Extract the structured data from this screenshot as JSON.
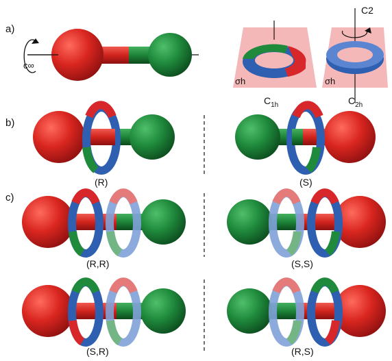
{
  "panels": {
    "a": "a)",
    "b": "b)",
    "c": "c)"
  },
  "axis_label_cinf": "c∞",
  "plane_label": "σh",
  "group_c1h": "C",
  "group_c1h_sub": "1h",
  "group_c2h": "C",
  "group_c2h_sub": "2h",
  "axis_c2": "C2",
  "b_left": "(R)",
  "b_right": "(S)",
  "c_row1_left": "(R,R)",
  "c_row1_right": "(S,S)",
  "c_row2_left": "(S,R)",
  "c_row2_right": "(R,S)",
  "colors": {
    "red": "#d7272b",
    "green": "#1f8a3c",
    "blue": "#2f5fb0",
    "pink": "#f4b8b8"
  }
}
